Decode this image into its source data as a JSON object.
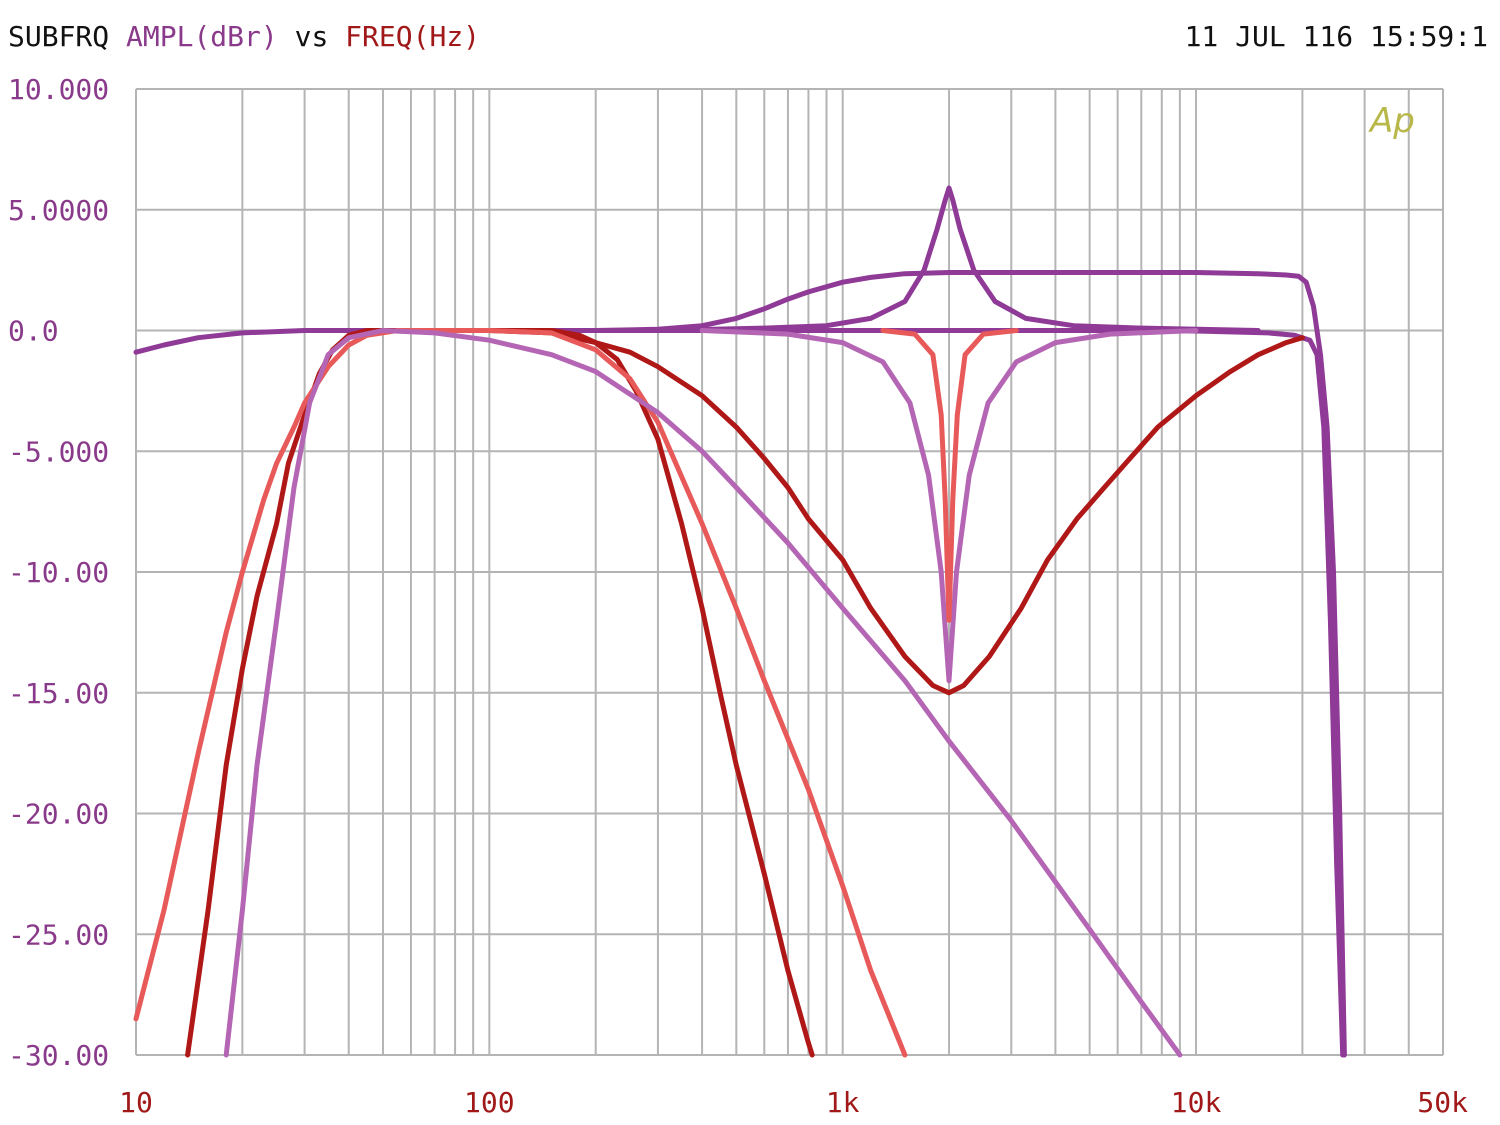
{
  "header": {
    "left": {
      "prefix": "SUBFRQ ",
      "yquantity": "AMPL(dBr)",
      "vs": " vs ",
      "xquantity": "FREQ(Hz)"
    },
    "timestamp": "11 JUL 116 15:59:1"
  },
  "colors": {
    "purple": "#8e3a96",
    "light_purple": "#b466b4",
    "dark_red": "#b01818",
    "salmon": "#e85a5a",
    "grid": "#b4b4b4",
    "ylabel_text": "#8a3a8a",
    "xlabel_text": "#a01818",
    "label_dark": "#111111",
    "logo": "#b8b84a"
  },
  "logo": {
    "text": "Ap"
  },
  "chart_data": {
    "type": "line",
    "title": "",
    "xlabel": "FREQ(Hz)",
    "ylabel": "AMPL(dBr)",
    "xscale": "log",
    "xlim": [
      10,
      50000
    ],
    "ylim": [
      -30,
      10
    ],
    "grid": true,
    "legend": "none",
    "ytick_values": [
      10,
      5,
      0,
      -5,
      -10,
      -15,
      -20,
      -25,
      -30
    ],
    "ytick_labels": [
      "10.000",
      "5.0000",
      "0.0",
      "-5.000",
      "-10.00",
      "-15.00",
      "-20.00",
      "-25.00",
      "-30.00"
    ],
    "xtick_values": [
      10,
      100,
      1000,
      10000,
      50000
    ],
    "xtick_labels": [
      "10",
      "100",
      "1k",
      "10k",
      "50k"
    ],
    "series": [
      {
        "color": "#8e3a96",
        "points": [
          [
            10,
            -0.9
          ],
          [
            12,
            -0.6
          ],
          [
            15,
            -0.3
          ],
          [
            20,
            -0.1
          ],
          [
            30,
            0
          ],
          [
            100,
            0
          ],
          [
            500,
            0
          ],
          [
            1000,
            0
          ],
          [
            5000,
            0
          ],
          [
            10000,
            -0.02
          ],
          [
            16000,
            -0.1
          ],
          [
            19000,
            -0.2
          ],
          [
            21000,
            -0.4
          ],
          [
            22000,
            -1.0
          ],
          [
            23000,
            -4
          ],
          [
            24000,
            -12
          ],
          [
            25000,
            -22
          ],
          [
            26000,
            -30
          ]
        ]
      },
      {
        "color": "#8e3a96",
        "points": [
          [
            200,
            0
          ],
          [
            300,
            0.05
          ],
          [
            400,
            0.2
          ],
          [
            500,
            0.5
          ],
          [
            600,
            0.9
          ],
          [
            700,
            1.3
          ],
          [
            800,
            1.6
          ],
          [
            1000,
            2.0
          ],
          [
            1200,
            2.2
          ],
          [
            1500,
            2.35
          ],
          [
            2000,
            2.4
          ],
          [
            5000,
            2.4
          ],
          [
            10000,
            2.4
          ],
          [
            15000,
            2.35
          ],
          [
            18000,
            2.3
          ],
          [
            19500,
            2.25
          ],
          [
            20500,
            2.0
          ],
          [
            21500,
            1.0
          ],
          [
            22500,
            -1.0
          ],
          [
            23500,
            -4
          ],
          [
            24500,
            -10
          ],
          [
            25500,
            -20
          ],
          [
            26300,
            -30
          ]
        ]
      },
      {
        "color": "#8e3a96",
        "points": [
          [
            300,
            0
          ],
          [
            600,
            0.1
          ],
          [
            900,
            0.2
          ],
          [
            1200,
            0.5
          ],
          [
            1500,
            1.2
          ],
          [
            1700,
            2.5
          ],
          [
            1850,
            4.2
          ],
          [
            1950,
            5.4
          ],
          [
            2000,
            5.9
          ],
          [
            2050,
            5.4
          ],
          [
            2150,
            4.2
          ],
          [
            2350,
            2.5
          ],
          [
            2700,
            1.2
          ],
          [
            3300,
            0.5
          ],
          [
            4500,
            0.2
          ],
          [
            7000,
            0.1
          ],
          [
            15000,
            0
          ]
        ]
      },
      {
        "color": "#b466b4",
        "points": [
          [
            400,
            0
          ],
          [
            700,
            -0.15
          ],
          [
            1000,
            -0.5
          ],
          [
            1300,
            -1.3
          ],
          [
            1550,
            -3
          ],
          [
            1750,
            -6
          ],
          [
            1900,
            -10
          ],
          [
            2000,
            -14.5
          ],
          [
            2100,
            -10
          ],
          [
            2280,
            -6
          ],
          [
            2580,
            -3
          ],
          [
            3100,
            -1.3
          ],
          [
            4000,
            -0.5
          ],
          [
            5700,
            -0.15
          ],
          [
            10000,
            0
          ]
        ]
      },
      {
        "color": "#e85a5a",
        "points": [
          [
            1300,
            0
          ],
          [
            1600,
            -0.15
          ],
          [
            1800,
            -1
          ],
          [
            1900,
            -3.5
          ],
          [
            1950,
            -7
          ],
          [
            2000,
            -12
          ],
          [
            2050,
            -7
          ],
          [
            2110,
            -3.5
          ],
          [
            2220,
            -1
          ],
          [
            2500,
            -0.15
          ],
          [
            3100,
            0
          ]
        ]
      },
      {
        "color": "#b01818",
        "points": [
          [
            100,
            0
          ],
          [
            150,
            -0.1
          ],
          [
            200,
            -0.5
          ],
          [
            250,
            -0.9
          ],
          [
            300,
            -1.5
          ],
          [
            400,
            -2.7
          ],
          [
            500,
            -4
          ],
          [
            600,
            -5.3
          ],
          [
            700,
            -6.5
          ],
          [
            800,
            -7.8
          ],
          [
            1000,
            -9.5
          ],
          [
            1200,
            -11.5
          ],
          [
            1500,
            -13.5
          ],
          [
            1800,
            -14.7
          ],
          [
            2000,
            -15
          ],
          [
            2200,
            -14.7
          ],
          [
            2600,
            -13.5
          ],
          [
            3200,
            -11.5
          ],
          [
            3800,
            -9.5
          ],
          [
            4600,
            -7.8
          ],
          [
            5500,
            -6.5
          ],
          [
            6500,
            -5.3
          ],
          [
            7800,
            -4
          ],
          [
            10000,
            -2.7
          ],
          [
            12500,
            -1.7
          ],
          [
            15000,
            -1
          ],
          [
            18000,
            -0.5
          ],
          [
            20000,
            -0.3
          ]
        ]
      },
      {
        "color": "#b01818",
        "points": [
          [
            14,
            -30
          ],
          [
            16,
            -24
          ],
          [
            18,
            -18
          ],
          [
            20,
            -14
          ],
          [
            22,
            -11
          ],
          [
            25,
            -8
          ],
          [
            27,
            -5.5
          ],
          [
            30,
            -3.5
          ],
          [
            33,
            -1.8
          ],
          [
            36,
            -0.8
          ],
          [
            40,
            -0.2
          ],
          [
            45,
            0
          ],
          [
            50,
            0
          ],
          [
            100,
            0
          ],
          [
            150,
            0
          ],
          [
            180,
            -0.2
          ],
          [
            200,
            -0.5
          ],
          [
            230,
            -1.2
          ],
          [
            260,
            -2.5
          ],
          [
            300,
            -4.5
          ],
          [
            350,
            -8
          ],
          [
            400,
            -11.5
          ],
          [
            450,
            -15
          ],
          [
            500,
            -18
          ],
          [
            600,
            -22.5
          ],
          [
            700,
            -26.5
          ],
          [
            800,
            -29.5
          ],
          [
            820,
            -30
          ]
        ]
      },
      {
        "color": "#e85a5a",
        "points": [
          [
            10,
            -28.5
          ],
          [
            12,
            -24
          ],
          [
            15,
            -17.5
          ],
          [
            18,
            -12.5
          ],
          [
            20,
            -10
          ],
          [
            23,
            -7
          ],
          [
            25,
            -5.5
          ],
          [
            28,
            -4
          ],
          [
            30,
            -3
          ],
          [
            35,
            -1.5
          ],
          [
            40,
            -0.6
          ],
          [
            45,
            -0.2
          ],
          [
            55,
            0
          ],
          [
            100,
            0
          ],
          [
            150,
            -0.1
          ],
          [
            200,
            -0.8
          ],
          [
            250,
            -2
          ],
          [
            300,
            -3.8
          ],
          [
            400,
            -8
          ],
          [
            500,
            -11.5
          ],
          [
            600,
            -14.5
          ],
          [
            800,
            -19
          ],
          [
            1000,
            -23
          ],
          [
            1200,
            -26.5
          ],
          [
            1500,
            -30
          ]
        ]
      },
      {
        "color": "#b466b4",
        "points": [
          [
            18,
            -30
          ],
          [
            20,
            -24
          ],
          [
            22,
            -18
          ],
          [
            25,
            -12
          ],
          [
            28,
            -6.5
          ],
          [
            31,
            -3
          ],
          [
            35,
            -1
          ],
          [
            40,
            -0.3
          ],
          [
            50,
            0
          ],
          [
            70,
            -0.1
          ],
          [
            100,
            -0.4
          ],
          [
            150,
            -1
          ],
          [
            200,
            -1.7
          ],
          [
            300,
            -3.4
          ],
          [
            400,
            -5
          ],
          [
            500,
            -6.5
          ],
          [
            700,
            -8.8
          ],
          [
            1000,
            -11.5
          ],
          [
            1500,
            -14.5
          ],
          [
            2000,
            -17
          ],
          [
            3000,
            -20.3
          ],
          [
            5000,
            -24.8
          ],
          [
            7000,
            -27.8
          ],
          [
            9000,
            -30
          ]
        ]
      }
    ]
  }
}
